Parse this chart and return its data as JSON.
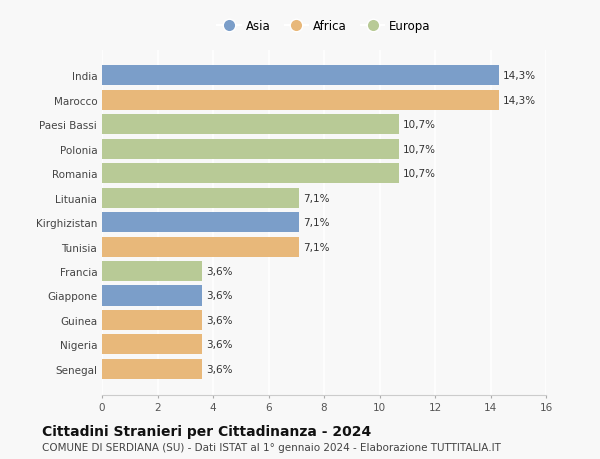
{
  "categories": [
    "India",
    "Marocco",
    "Paesi Bassi",
    "Polonia",
    "Romania",
    "Lituania",
    "Kirghizistan",
    "Tunisia",
    "Francia",
    "Giappone",
    "Guinea",
    "Nigeria",
    "Senegal"
  ],
  "values": [
    14.3,
    14.3,
    10.7,
    10.7,
    10.7,
    7.1,
    7.1,
    7.1,
    3.6,
    3.6,
    3.6,
    3.6,
    3.6
  ],
  "labels": [
    "14,3%",
    "14,3%",
    "10,7%",
    "10,7%",
    "10,7%",
    "7,1%",
    "7,1%",
    "7,1%",
    "3,6%",
    "3,6%",
    "3,6%",
    "3,6%",
    "3,6%"
  ],
  "continents": [
    "Asia",
    "Africa",
    "Europa",
    "Europa",
    "Europa",
    "Europa",
    "Asia",
    "Africa",
    "Europa",
    "Asia",
    "Africa",
    "Africa",
    "Africa"
  ],
  "colors": {
    "Asia": "#7b9ec9",
    "Africa": "#e8b87a",
    "Europa": "#b8ca96"
  },
  "legend_labels": [
    "Asia",
    "Africa",
    "Europa"
  ],
  "xlim": [
    0,
    16
  ],
  "xticks": [
    0,
    2,
    4,
    6,
    8,
    10,
    12,
    14,
    16
  ],
  "title": "Cittadini Stranieri per Cittadinanza - 2024",
  "subtitle": "COMUNE DI SERDIANA (SU) - Dati ISTAT al 1° gennaio 2024 - Elaborazione TUTTITALIA.IT",
  "bg_color": "#f8f8f8",
  "bar_height": 0.82,
  "title_fontsize": 10,
  "subtitle_fontsize": 7.5,
  "label_fontsize": 7.5,
  "tick_fontsize": 7.5,
  "legend_fontsize": 8.5
}
